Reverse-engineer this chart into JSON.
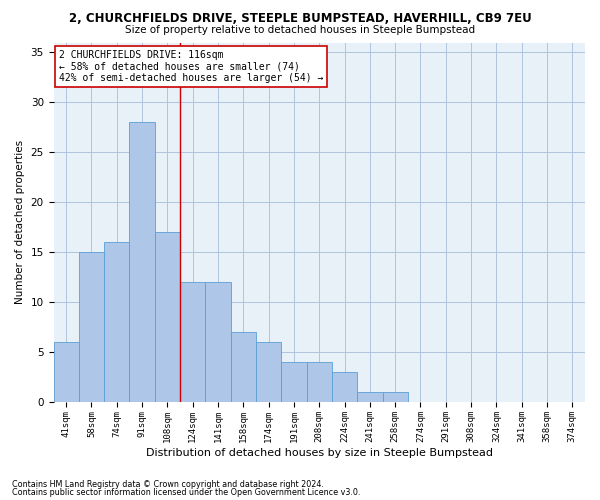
{
  "title": "2, CHURCHFIELDS DRIVE, STEEPLE BUMPSTEAD, HAVERHILL, CB9 7EU",
  "subtitle": "Size of property relative to detached houses in Steeple Bumpstead",
  "xlabel": "Distribution of detached houses by size in Steeple Bumpstead",
  "ylabel": "Number of detached properties",
  "categories": [
    "41sqm",
    "58sqm",
    "74sqm",
    "91sqm",
    "108sqm",
    "124sqm",
    "141sqm",
    "158sqm",
    "174sqm",
    "191sqm",
    "208sqm",
    "224sqm",
    "241sqm",
    "258sqm",
    "274sqm",
    "291sqm",
    "308sqm",
    "324sqm",
    "341sqm",
    "358sqm",
    "374sqm"
  ],
  "values": [
    6,
    15,
    16,
    28,
    17,
    12,
    12,
    7,
    6,
    4,
    4,
    3,
    1,
    1,
    0,
    0,
    0,
    0,
    0,
    0,
    0
  ],
  "bar_color": "#aec6e8",
  "bar_edge_color": "#5a9fd4",
  "property_line_x": 4.5,
  "property_line_color": "#cc0000",
  "annotation_text": "2 CHURCHFIELDS DRIVE: 116sqm\n← 58% of detached houses are smaller (74)\n42% of semi-detached houses are larger (54) →",
  "annotation_box_color": "#ffffff",
  "annotation_box_edge_color": "#cc0000",
  "ylim": [
    0,
    36
  ],
  "yticks": [
    0,
    5,
    10,
    15,
    20,
    25,
    30,
    35
  ],
  "grid_color": "#b0c4de",
  "background_color": "#e8f0f8",
  "footer_line1": "Contains HM Land Registry data © Crown copyright and database right 2024.",
  "footer_line2": "Contains public sector information licensed under the Open Government Licence v3.0."
}
